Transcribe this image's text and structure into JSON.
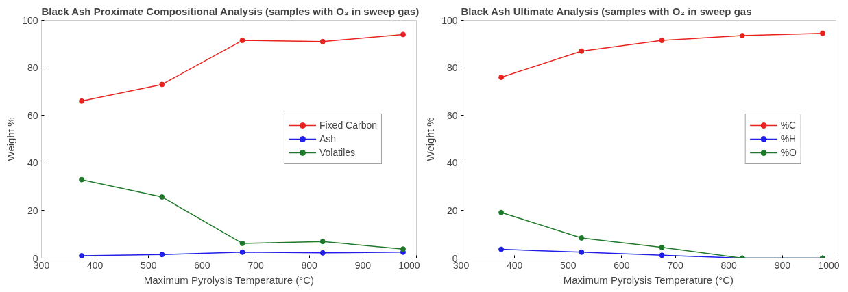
{
  "chart_data": [
    {
      "type": "line",
      "title": "Black Ash Proximate Compositional Analysis (samples with O₂ in sweep gas)",
      "xlabel": "Maximum Pyrolysis Temperature (°C)",
      "ylabel": "Weight %",
      "x": [
        375,
        525,
        675,
        825,
        975
      ],
      "xlim": [
        300,
        1000
      ],
      "xticks": [
        300,
        400,
        500,
        600,
        700,
        800,
        900,
        1000
      ],
      "ylim": [
        0,
        100
      ],
      "yticks": [
        0,
        20,
        40,
        60,
        80,
        100
      ],
      "grid": false,
      "legend": "right",
      "marker": "circle",
      "line_style": "solid",
      "series": [
        {
          "name": "Fixed Carbon",
          "color": "#e8231f",
          "values": [
            66,
            73,
            91.5,
            91,
            94
          ]
        },
        {
          "name": "Ash",
          "color": "#1f1fe8",
          "values": [
            1,
            1.5,
            2.5,
            2.2,
            2.5
          ]
        },
        {
          "name": "Volatiles",
          "color": "#1e7a2a",
          "values": [
            33,
            25.7,
            6.2,
            7,
            3.8
          ]
        }
      ]
    },
    {
      "type": "line",
      "title": "Black Ash Ultimate Analysis (samples with O₂ in sweep gas",
      "xlabel": "Maximum Pyrolysis Temperature (°C)",
      "ylabel": "Weight %",
      "x": [
        375,
        525,
        675,
        825,
        975
      ],
      "xlim": [
        300,
        1000
      ],
      "xticks": [
        300,
        400,
        500,
        600,
        700,
        800,
        900,
        1000
      ],
      "ylim": [
        0,
        100
      ],
      "yticks": [
        0,
        20,
        40,
        60,
        80,
        100
      ],
      "grid": false,
      "legend": "right",
      "marker": "circle",
      "line_style": "solid",
      "series": [
        {
          "name": "%C",
          "color": "#e8231f",
          "values": [
            76,
            87,
            91.5,
            93.5,
            94.5
          ]
        },
        {
          "name": "%H",
          "color": "#1f1fe8",
          "values": [
            3.7,
            2.5,
            1.2,
            0,
            0
          ]
        },
        {
          "name": "%O",
          "color": "#1e7a2a",
          "values": [
            19.2,
            8.5,
            4.5,
            0,
            0
          ]
        }
      ]
    }
  ]
}
